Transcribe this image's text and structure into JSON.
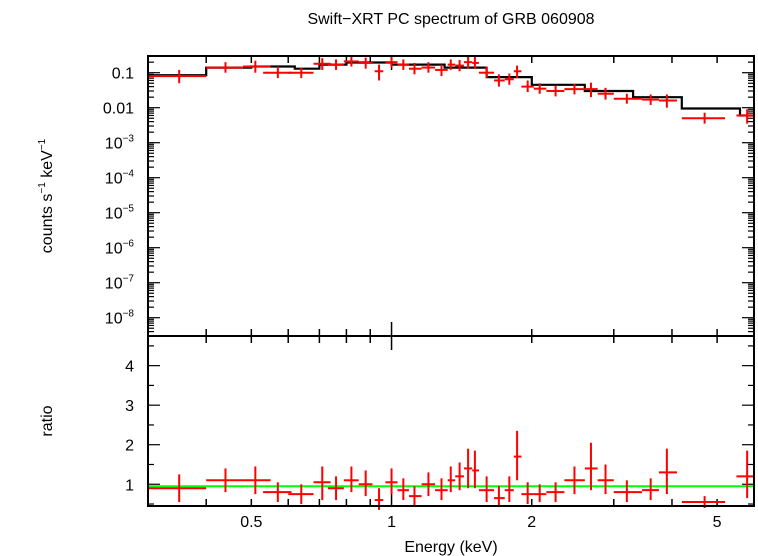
{
  "chart_data": [
    {
      "type": "scatter",
      "title": "Swift−XRT PC spectrum of GRB 060908",
      "xlabel": "Energy (keV)",
      "ylabel_parts": [
        "counts s",
        "−1",
        " keV",
        "−1"
      ],
      "xscale": "log",
      "yscale": "log",
      "xlim": [
        0.3,
        6.0
      ],
      "ylim": [
        3e-09,
        0.3
      ],
      "xticks": [
        {
          "value": 0.5,
          "label": "0.5"
        },
        {
          "value": 1,
          "label": "1"
        },
        {
          "value": 2,
          "label": "2"
        },
        {
          "value": 5,
          "label": "5"
        }
      ],
      "yticks": [
        {
          "value": 0.1,
          "base": "0.1",
          "exp": ""
        },
        {
          "value": 0.01,
          "base": "0.01",
          "exp": ""
        },
        {
          "value": 0.001,
          "base": "10",
          "exp": "−3"
        },
        {
          "value": 0.0001,
          "base": "10",
          "exp": "−4"
        },
        {
          "value": 1e-05,
          "base": "10",
          "exp": "−5"
        },
        {
          "value": 1e-06,
          "base": "10",
          "exp": "−6"
        },
        {
          "value": 1e-07,
          "base": "10",
          "exp": "−7"
        },
        {
          "value": 1e-08,
          "base": "10",
          "exp": "−8"
        }
      ],
      "colors": {
        "data": "#ff0000",
        "model": "#000000"
      },
      "model": [
        [
          0.3,
          0.4,
          0.085
        ],
        [
          0.4,
          0.5,
          0.14
        ],
        [
          0.5,
          0.62,
          0.15
        ],
        [
          0.62,
          0.7,
          0.13
        ],
        [
          0.7,
          0.8,
          0.17
        ],
        [
          0.8,
          1.0,
          0.195
        ],
        [
          1.0,
          1.3,
          0.17
        ],
        [
          1.3,
          1.6,
          0.14
        ],
        [
          1.6,
          2.0,
          0.075
        ],
        [
          2.0,
          2.6,
          0.045
        ],
        [
          2.6,
          3.3,
          0.03
        ],
        [
          3.3,
          4.2,
          0.02
        ],
        [
          4.2,
          5.6,
          0.0095
        ],
        [
          5.6,
          6.0,
          0.006
        ]
      ],
      "points": [
        {
          "x": 0.35,
          "xlo": 0.3,
          "xhi": 0.4,
          "y": 0.08,
          "ylo": 0.05,
          "yhi": 0.12
        },
        {
          "x": 0.44,
          "xlo": 0.4,
          "xhi": 0.48,
          "y": 0.14,
          "ylo": 0.1,
          "yhi": 0.2
        },
        {
          "x": 0.51,
          "xlo": 0.48,
          "xhi": 0.55,
          "y": 0.15,
          "ylo": 0.1,
          "yhi": 0.22
        },
        {
          "x": 0.57,
          "xlo": 0.53,
          "xhi": 0.61,
          "y": 0.1,
          "ylo": 0.07,
          "yhi": 0.15
        },
        {
          "x": 0.64,
          "xlo": 0.6,
          "xhi": 0.68,
          "y": 0.1,
          "ylo": 0.07,
          "yhi": 0.14
        },
        {
          "x": 0.71,
          "xlo": 0.68,
          "xhi": 0.74,
          "y": 0.18,
          "ylo": 0.12,
          "yhi": 0.26
        },
        {
          "x": 0.76,
          "xlo": 0.73,
          "xhi": 0.79,
          "y": 0.17,
          "ylo": 0.12,
          "yhi": 0.24
        },
        {
          "x": 0.82,
          "xlo": 0.79,
          "xhi": 0.85,
          "y": 0.21,
          "ylo": 0.15,
          "yhi": 0.29
        },
        {
          "x": 0.88,
          "xlo": 0.85,
          "xhi": 0.91,
          "y": 0.19,
          "ylo": 0.13,
          "yhi": 0.27
        },
        {
          "x": 0.94,
          "xlo": 0.92,
          "xhi": 0.96,
          "y": 0.11,
          "ylo": 0.06,
          "yhi": 0.17
        },
        {
          "x": 1.0,
          "xlo": 0.97,
          "xhi": 1.03,
          "y": 0.2,
          "ylo": 0.14,
          "yhi": 0.28
        },
        {
          "x": 1.06,
          "xlo": 1.03,
          "xhi": 1.09,
          "y": 0.17,
          "ylo": 0.12,
          "yhi": 0.24
        },
        {
          "x": 1.12,
          "xlo": 1.09,
          "xhi": 1.16,
          "y": 0.13,
          "ylo": 0.09,
          "yhi": 0.19
        },
        {
          "x": 1.2,
          "xlo": 1.16,
          "xhi": 1.24,
          "y": 0.14,
          "ylo": 0.1,
          "yhi": 0.2
        },
        {
          "x": 1.28,
          "xlo": 1.24,
          "xhi": 1.32,
          "y": 0.12,
          "ylo": 0.08,
          "yhi": 0.17
        },
        {
          "x": 1.34,
          "xlo": 1.32,
          "xhi": 1.37,
          "y": 0.17,
          "ylo": 0.12,
          "yhi": 0.24
        },
        {
          "x": 1.4,
          "xlo": 1.37,
          "xhi": 1.43,
          "y": 0.16,
          "ylo": 0.11,
          "yhi": 0.23
        },
        {
          "x": 1.46,
          "xlo": 1.43,
          "xhi": 1.49,
          "y": 0.2,
          "ylo": 0.13,
          "yhi": 0.3
        },
        {
          "x": 1.51,
          "xlo": 1.49,
          "xhi": 1.54,
          "y": 0.19,
          "ylo": 0.13,
          "yhi": 0.28
        },
        {
          "x": 1.6,
          "xlo": 1.54,
          "xhi": 1.66,
          "y": 0.1,
          "ylo": 0.07,
          "yhi": 0.15
        },
        {
          "x": 1.7,
          "xlo": 1.66,
          "xhi": 1.75,
          "y": 0.06,
          "ylo": 0.04,
          "yhi": 0.09
        },
        {
          "x": 1.79,
          "xlo": 1.75,
          "xhi": 1.83,
          "y": 0.065,
          "ylo": 0.045,
          "yhi": 0.095
        },
        {
          "x": 1.86,
          "xlo": 1.83,
          "xhi": 1.9,
          "y": 0.11,
          "ylo": 0.07,
          "yhi": 0.16
        },
        {
          "x": 1.96,
          "xlo": 1.9,
          "xhi": 2.02,
          "y": 0.04,
          "ylo": 0.028,
          "yhi": 0.06
        },
        {
          "x": 2.08,
          "xlo": 2.02,
          "xhi": 2.15,
          "y": 0.035,
          "ylo": 0.025,
          "yhi": 0.05
        },
        {
          "x": 2.25,
          "xlo": 2.15,
          "xhi": 2.35,
          "y": 0.03,
          "ylo": 0.021,
          "yhi": 0.043
        },
        {
          "x": 2.47,
          "xlo": 2.35,
          "xhi": 2.6,
          "y": 0.034,
          "ylo": 0.024,
          "yhi": 0.048
        },
        {
          "x": 2.68,
          "xlo": 2.6,
          "xhi": 2.77,
          "y": 0.034,
          "ylo": 0.02,
          "yhi": 0.052
        },
        {
          "x": 2.88,
          "xlo": 2.77,
          "xhi": 3.0,
          "y": 0.025,
          "ylo": 0.017,
          "yhi": 0.037
        },
        {
          "x": 3.2,
          "xlo": 3.0,
          "xhi": 3.45,
          "y": 0.018,
          "ylo": 0.013,
          "yhi": 0.025
        },
        {
          "x": 3.6,
          "xlo": 3.45,
          "xhi": 3.75,
          "y": 0.017,
          "ylo": 0.012,
          "yhi": 0.024
        },
        {
          "x": 3.9,
          "xlo": 3.75,
          "xhi": 4.1,
          "y": 0.016,
          "ylo": 0.01,
          "yhi": 0.024
        },
        {
          "x": 4.7,
          "xlo": 4.2,
          "xhi": 5.2,
          "y": 0.005,
          "ylo": 0.0035,
          "yhi": 0.0072
        },
        {
          "x": 5.8,
          "xlo": 5.5,
          "xhi": 6.0,
          "y": 0.006,
          "ylo": 0.0035,
          "yhi": 0.009
        }
      ]
    },
    {
      "type": "scatter",
      "xlabel": "Energy (keV)",
      "ylabel": "ratio",
      "xscale": "log",
      "xlim": [
        0.3,
        6.0
      ],
      "ylim": [
        0.45,
        4.75
      ],
      "yticks": [
        {
          "value": 1,
          "label": "1"
        },
        {
          "value": 2,
          "label": "2"
        },
        {
          "value": 3,
          "label": "3"
        },
        {
          "value": 4,
          "label": "4"
        }
      ],
      "reference_line": 0.95,
      "colors": {
        "data": "#ff0000",
        "reference": "#00ff00"
      },
      "points": [
        {
          "x": 0.35,
          "xlo": 0.3,
          "xhi": 0.4,
          "y": 0.9,
          "ylo": 0.55,
          "yhi": 1.25
        },
        {
          "x": 0.44,
          "xlo": 0.4,
          "xhi": 0.48,
          "y": 1.1,
          "ylo": 0.8,
          "yhi": 1.4
        },
        {
          "x": 0.51,
          "xlo": 0.48,
          "xhi": 0.55,
          "y": 1.1,
          "ylo": 0.75,
          "yhi": 1.45
        },
        {
          "x": 0.57,
          "xlo": 0.53,
          "xhi": 0.61,
          "y": 0.8,
          "ylo": 0.55,
          "yhi": 1.05
        },
        {
          "x": 0.64,
          "xlo": 0.6,
          "xhi": 0.68,
          "y": 0.75,
          "ylo": 0.5,
          "yhi": 1.0
        },
        {
          "x": 0.71,
          "xlo": 0.68,
          "xhi": 0.74,
          "y": 1.05,
          "ylo": 0.6,
          "yhi": 1.45
        },
        {
          "x": 0.76,
          "xlo": 0.73,
          "xhi": 0.79,
          "y": 0.9,
          "ylo": 0.6,
          "yhi": 1.2
        },
        {
          "x": 0.82,
          "xlo": 0.79,
          "xhi": 0.85,
          "y": 1.1,
          "ylo": 0.8,
          "yhi": 1.45
        },
        {
          "x": 0.88,
          "xlo": 0.85,
          "xhi": 0.91,
          "y": 1.0,
          "ylo": 0.7,
          "yhi": 1.35
        },
        {
          "x": 0.94,
          "xlo": 0.92,
          "xhi": 0.96,
          "y": 0.6,
          "ylo": 0.35,
          "yhi": 0.9
        },
        {
          "x": 1.0,
          "xlo": 0.97,
          "xhi": 1.03,
          "y": 1.05,
          "ylo": 0.75,
          "yhi": 1.4
        },
        {
          "x": 1.06,
          "xlo": 1.03,
          "xhi": 1.09,
          "y": 0.85,
          "ylo": 0.6,
          "yhi": 1.15
        },
        {
          "x": 1.12,
          "xlo": 1.09,
          "xhi": 1.16,
          "y": 0.7,
          "ylo": 0.45,
          "yhi": 0.95
        },
        {
          "x": 1.2,
          "xlo": 1.16,
          "xhi": 1.24,
          "y": 1.0,
          "ylo": 0.7,
          "yhi": 1.3
        },
        {
          "x": 1.28,
          "xlo": 1.24,
          "xhi": 1.32,
          "y": 0.85,
          "ylo": 0.6,
          "yhi": 1.15
        },
        {
          "x": 1.34,
          "xlo": 1.32,
          "xhi": 1.37,
          "y": 1.1,
          "ylo": 0.8,
          "yhi": 1.45
        },
        {
          "x": 1.4,
          "xlo": 1.37,
          "xhi": 1.43,
          "y": 1.2,
          "ylo": 0.85,
          "yhi": 1.55
        },
        {
          "x": 1.46,
          "xlo": 1.43,
          "xhi": 1.49,
          "y": 1.4,
          "ylo": 0.9,
          "yhi": 1.9
        },
        {
          "x": 1.51,
          "xlo": 1.49,
          "xhi": 1.54,
          "y": 1.35,
          "ylo": 0.9,
          "yhi": 1.85
        },
        {
          "x": 1.6,
          "xlo": 1.54,
          "xhi": 1.66,
          "y": 0.85,
          "ylo": 0.55,
          "yhi": 1.2
        },
        {
          "x": 1.7,
          "xlo": 1.66,
          "xhi": 1.75,
          "y": 0.65,
          "ylo": 0.45,
          "yhi": 0.95
        },
        {
          "x": 1.79,
          "xlo": 1.75,
          "xhi": 1.83,
          "y": 0.85,
          "ylo": 0.55,
          "yhi": 1.2
        },
        {
          "x": 1.86,
          "xlo": 1.83,
          "xhi": 1.9,
          "y": 1.7,
          "ylo": 1.1,
          "yhi": 2.35
        },
        {
          "x": 1.96,
          "xlo": 1.9,
          "xhi": 2.02,
          "y": 0.75,
          "ylo": 0.5,
          "yhi": 1.05
        },
        {
          "x": 2.08,
          "xlo": 2.02,
          "xhi": 2.15,
          "y": 0.75,
          "ylo": 0.55,
          "yhi": 1.0
        },
        {
          "x": 2.25,
          "xlo": 2.15,
          "xhi": 2.35,
          "y": 0.8,
          "ylo": 0.55,
          "yhi": 1.05
        },
        {
          "x": 2.47,
          "xlo": 2.35,
          "xhi": 2.6,
          "y": 1.1,
          "ylo": 0.75,
          "yhi": 1.45
        },
        {
          "x": 2.68,
          "xlo": 2.6,
          "xhi": 2.77,
          "y": 1.4,
          "ylo": 0.85,
          "yhi": 2.05
        },
        {
          "x": 2.88,
          "xlo": 2.77,
          "xhi": 3.0,
          "y": 1.1,
          "ylo": 0.75,
          "yhi": 1.5
        },
        {
          "x": 3.2,
          "xlo": 3.0,
          "xhi": 3.45,
          "y": 0.8,
          "ylo": 0.55,
          "yhi": 1.1
        },
        {
          "x": 3.6,
          "xlo": 3.45,
          "xhi": 3.75,
          "y": 0.85,
          "ylo": 0.6,
          "yhi": 1.15
        },
        {
          "x": 3.9,
          "xlo": 3.75,
          "xhi": 4.1,
          "y": 1.3,
          "ylo": 0.75,
          "yhi": 1.9
        },
        {
          "x": 4.7,
          "xlo": 4.2,
          "xhi": 5.2,
          "y": 0.55,
          "ylo": 0.4,
          "yhi": 0.7
        },
        {
          "x": 5.8,
          "xlo": 5.5,
          "xhi": 6.0,
          "y": 1.2,
          "ylo": 0.65,
          "yhi": 1.85
        }
      ]
    }
  ]
}
